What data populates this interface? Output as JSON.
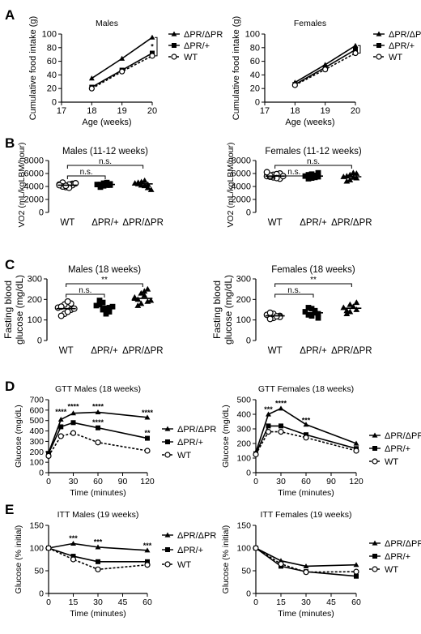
{
  "panels": {
    "A": "A",
    "B": "B",
    "C": "C",
    "D": "D",
    "E": "E"
  },
  "chart_data": [
    {
      "id": "A-males",
      "type": "line",
      "title": "Males",
      "xlabel": "Age (weeks)",
      "ylabel": "Cumulative food intake (g)",
      "xlim": [
        17,
        20
      ],
      "ylim": [
        0,
        100
      ],
      "xticks": [
        17,
        18,
        19,
        20
      ],
      "yticks": [
        0,
        20,
        40,
        60,
        80,
        100
      ],
      "x": [
        18,
        19,
        20
      ],
      "series": [
        {
          "name": "ΔPR/ΔPR",
          "marker": "triangle",
          "values": [
            35,
            64,
            95
          ]
        },
        {
          "name": "ΔPR/+",
          "marker": "square",
          "values": [
            22,
            47,
            72
          ]
        },
        {
          "name": "WT",
          "marker": "circle",
          "values": [
            20,
            45,
            68
          ]
        }
      ],
      "annotations": [
        {
          "text": "*",
          "x": 20,
          "y": 83
        }
      ]
    },
    {
      "id": "A-females",
      "type": "line",
      "title": "Females",
      "xlabel": "Age (weeks)",
      "ylabel": "Cumulative food intake (g)",
      "xlim": [
        17,
        20
      ],
      "ylim": [
        0,
        100
      ],
      "xticks": [
        17,
        18,
        19,
        20
      ],
      "yticks": [
        0,
        20,
        40,
        60,
        80,
        100
      ],
      "x": [
        18,
        19,
        20
      ],
      "series": [
        {
          "name": "ΔPR/ΔPR",
          "marker": "triangle",
          "values": [
            29,
            55,
            83
          ]
        },
        {
          "name": "ΔPR/+",
          "marker": "square",
          "values": [
            26,
            51,
            77
          ]
        },
        {
          "name": "WT",
          "marker": "circle",
          "values": [
            25,
            48,
            72
          ]
        }
      ],
      "annotations": [
        {
          "text": "*",
          "x": 20,
          "y": 79
        }
      ]
    },
    {
      "id": "B-males",
      "type": "scatter",
      "title": "Males (11-12 weeks)",
      "ylabel": "VO2 (mL/kgLBM/hour)",
      "ylim": [
        0,
        8000
      ],
      "yticks": [
        0,
        2000,
        4000,
        6000,
        8000
      ],
      "categories": [
        "WT",
        "ΔPR/+",
        "ΔPR/ΔPR"
      ],
      "series": [
        {
          "name": "WT",
          "marker": "circle",
          "values": [
            4300,
            4100,
            3900,
            4400,
            4200,
            4600,
            4000,
            4300,
            3800,
            4500,
            4200,
            4100
          ]
        },
        {
          "name": "ΔPR/+",
          "marker": "square",
          "values": [
            4300,
            4100,
            4500,
            4200,
            4400,
            3900,
            4300,
            4600,
            4200
          ]
        },
        {
          "name": "ΔPR/ΔPR",
          "marker": "triangle",
          "values": [
            4500,
            4200,
            4700,
            4300,
            3800,
            4600,
            4400,
            4100,
            4900,
            3500
          ]
        }
      ],
      "means": [
        4200,
        4300,
        4400
      ],
      "brackets": [
        {
          "from": 0,
          "to": 1,
          "text": "n.s."
        },
        {
          "from": 0,
          "to": 2,
          "text": "n.s."
        }
      ]
    },
    {
      "id": "B-females",
      "type": "scatter",
      "title": "Females (11-12 weeks)",
      "ylabel": "VO2 (mL/kgLBM/hour)",
      "ylim": [
        0,
        8000
      ],
      "yticks": [
        0,
        2000,
        4000,
        6000,
        8000
      ],
      "categories": [
        "WT",
        "ΔPR/+",
        "ΔPR/ΔPR"
      ],
      "series": [
        {
          "name": "WT",
          "marker": "circle",
          "values": [
            5600,
            5400,
            5800,
            5200,
            6000,
            5500,
            5700,
            5900,
            5300,
            5600,
            6200
          ]
        },
        {
          "name": "ΔPR/+",
          "marker": "square",
          "values": [
            5600,
            5300,
            5900,
            5500,
            6100,
            5200,
            5800,
            5700,
            5400
          ]
        },
        {
          "name": "ΔPR/ΔPR",
          "marker": "triangle",
          "values": [
            5500,
            5000,
            5800,
            5300,
            6000,
            4800,
            5600,
            5400,
            6100
          ]
        }
      ],
      "means": [
        5600,
        5600,
        5500
      ],
      "brackets": [
        {
          "from": 0,
          "to": 1,
          "text": "n.s."
        },
        {
          "from": 0,
          "to": 2,
          "text": "n.s."
        }
      ]
    },
    {
      "id": "C-males",
      "type": "scatter",
      "title": "Males (18 weeks)",
      "ylabel": "Fasting blood glucose (mg/dL)",
      "ylim": [
        0,
        300
      ],
      "yticks": [
        0,
        100,
        200,
        300
      ],
      "categories": [
        "WT",
        "ΔPR/+",
        "ΔPR/ΔPR"
      ],
      "series": [
        {
          "name": "WT",
          "marker": "circle",
          "values": [
            160,
            130,
            175,
            180,
            150,
            120,
            165,
            140,
            190,
            155
          ]
        },
        {
          "name": "ΔPR/+",
          "marker": "square",
          "values": [
            170,
            150,
            185,
            160,
            140,
            195,
            175,
            155,
            130,
            165
          ]
        },
        {
          "name": "ΔPR/ΔPR",
          "marker": "triangle",
          "values": [
            210,
            180,
            230,
            190,
            250,
            200,
            170,
            220,
            240,
            195,
            205
          ]
        }
      ],
      "means": [
        155,
        167,
        205
      ],
      "brackets": [
        {
          "from": 0,
          "to": 1,
          "text": "n.s."
        },
        {
          "from": 0,
          "to": 2,
          "text": "**"
        }
      ]
    },
    {
      "id": "C-females",
      "type": "scatter",
      "title": "Females (18 weeks)",
      "ylabel": "Fasting blood glucose (mg/dL)",
      "ylim": [
        0,
        300
      ],
      "yticks": [
        0,
        100,
        200,
        300
      ],
      "categories": [
        "WT",
        "ΔPR/+",
        "ΔPR/ΔPR"
      ],
      "series": [
        {
          "name": "WT",
          "marker": "circle",
          "values": [
            125,
            110,
            130,
            120,
            115,
            105,
            135,
            118
          ]
        },
        {
          "name": "ΔPR/+",
          "marker": "square",
          "values": [
            140,
            120,
            155,
            130,
            110,
            160,
            125,
            145,
            135
          ]
        },
        {
          "name": "ΔPR/ΔPR",
          "marker": "triangle",
          "values": [
            160,
            140,
            175,
            150,
            185,
            145,
            130,
            165
          ]
        }
      ],
      "means": [
        120,
        135,
        157
      ],
      "brackets": [
        {
          "from": 0,
          "to": 1,
          "text": "n.s."
        },
        {
          "from": 0,
          "to": 2,
          "text": "**"
        }
      ]
    },
    {
      "id": "D-males",
      "type": "line",
      "title": "GTT Males (18 weeks)",
      "xlabel": "Time (minutes)",
      "ylabel": "Glucose (mg/dL)",
      "xlim": [
        0,
        120
      ],
      "ylim": [
        0,
        700
      ],
      "xticks": [
        0,
        30,
        60,
        90,
        120
      ],
      "yticks": [
        0,
        100,
        200,
        300,
        400,
        500,
        600,
        700
      ],
      "x": [
        0,
        15,
        30,
        60,
        120
      ],
      "series": [
        {
          "name": "ΔPR/ΔPR",
          "marker": "triangle",
          "values": [
            190,
            510,
            570,
            580,
            530
          ]
        },
        {
          "name": "ΔPR/+",
          "marker": "square",
          "values": [
            185,
            440,
            480,
            430,
            330
          ]
        },
        {
          "name": "WT",
          "marker": "circle",
          "values": [
            160,
            350,
            380,
            290,
            210
          ]
        }
      ],
      "annotations": [
        {
          "text": "****",
          "x": 15,
          "y": 590
        },
        {
          "text": "****",
          "x": 30,
          "y": 640
        },
        {
          "text": "****",
          "x": 60,
          "y": 640
        },
        {
          "text": "****",
          "x": 60,
          "y": 490
        },
        {
          "text": "****",
          "x": 120,
          "y": 585
        },
        {
          "text": "**",
          "x": 120,
          "y": 390
        }
      ]
    },
    {
      "id": "D-females",
      "type": "line",
      "title": "GTT Females (18 weeks)",
      "xlabel": "Time (minutes)",
      "ylabel": "Glucose (mg/dL)",
      "xlim": [
        0,
        120
      ],
      "ylim": [
        0,
        500
      ],
      "xticks": [
        0,
        30,
        60,
        90,
        120
      ],
      "yticks": [
        0,
        100,
        200,
        300,
        400,
        500
      ],
      "x": [
        0,
        15,
        30,
        60,
        120
      ],
      "series": [
        {
          "name": "ΔPR/ΔPR",
          "marker": "triangle",
          "values": [
            140,
            400,
            440,
            330,
            200
          ]
        },
        {
          "name": "ΔPR/+",
          "marker": "square",
          "values": [
            130,
            320,
            320,
            260,
            165
          ]
        },
        {
          "name": "WT",
          "marker": "circle",
          "values": [
            125,
            280,
            280,
            240,
            150
          ]
        }
      ],
      "annotations": [
        {
          "text": "***",
          "x": 15,
          "y": 440
        },
        {
          "text": "****",
          "x": 30,
          "y": 480
        },
        {
          "text": "***",
          "x": 60,
          "y": 365
        }
      ]
    },
    {
      "id": "E-males",
      "type": "line",
      "title": "ITT Males (19 weeks)",
      "xlabel": "Time (minutes)",
      "ylabel": "Glucose (% initial)",
      "xlim": [
        0,
        60
      ],
      "ylim": [
        0,
        150
      ],
      "xticks": [
        0,
        15,
        30,
        45,
        60
      ],
      "yticks": [
        0,
        50,
        100,
        150
      ],
      "x": [
        0,
        15,
        30,
        60
      ],
      "series": [
        {
          "name": "ΔPR/ΔPR",
          "marker": "triangle",
          "values": [
            100,
            110,
            102,
            95
          ]
        },
        {
          "name": "ΔPR/+",
          "marker": "square",
          "values": [
            100,
            82,
            70,
            70
          ]
        },
        {
          "name": "WT",
          "marker": "circle",
          "values": [
            100,
            75,
            53,
            63
          ]
        }
      ],
      "annotations": [
        {
          "text": "***",
          "x": 15,
          "y": 123
        },
        {
          "text": "***",
          "x": 30,
          "y": 115
        },
        {
          "text": "***",
          "x": 60,
          "y": 107
        }
      ]
    },
    {
      "id": "E-females",
      "type": "line",
      "title": "ITT Females (19 weeks)",
      "xlabel": "Time (minutes)",
      "ylabel": "Glucose (% initial)",
      "xlim": [
        0,
        60
      ],
      "ylim": [
        0,
        150
      ],
      "xticks": [
        0,
        15,
        30,
        45,
        60
      ],
      "yticks": [
        0,
        50,
        100,
        150
      ],
      "x": [
        0,
        15,
        30,
        60
      ],
      "series": [
        {
          "name": "ΔPR/ΔPR",
          "marker": "triangle",
          "values": [
            100,
            72,
            60,
            63
          ]
        },
        {
          "name": "ΔPR/+",
          "marker": "square",
          "values": [
            100,
            60,
            48,
            38
          ]
        },
        {
          "name": "WT",
          "marker": "circle",
          "values": [
            100,
            65,
            47,
            48
          ]
        }
      ],
      "annotations": []
    }
  ]
}
